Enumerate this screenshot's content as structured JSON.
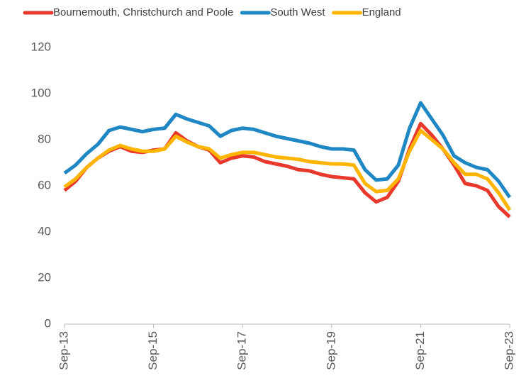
{
  "chart_data": {
    "type": "line",
    "categories": [
      "Sep-13",
      null,
      null,
      null,
      null,
      null,
      null,
      null,
      "Sep-15",
      null,
      null,
      null,
      null,
      null,
      null,
      null,
      "Sep-17",
      null,
      null,
      null,
      null,
      null,
      null,
      null,
      "Sep-19",
      null,
      null,
      null,
      null,
      null,
      null,
      null,
      "Sep-21",
      null,
      null,
      null,
      null,
      null,
      null,
      null,
      "Sep-23"
    ],
    "series": [
      {
        "name": "Bournemouth, Christchurch and Poole",
        "color": "#e8392c",
        "values": [
          58,
          62,
          68,
          72,
          75,
          77,
          75,
          74.5,
          75.5,
          76,
          83,
          79.5,
          77,
          75.5,
          70,
          72,
          73,
          72.5,
          70.5,
          69.5,
          68.5,
          67,
          66.5,
          65,
          64,
          63.5,
          63,
          57,
          53,
          55,
          62,
          76,
          87,
          82,
          76,
          69,
          61,
          60,
          58,
          51,
          46.5
        ]
      },
      {
        "name": "South West",
        "color": "#1f88c4",
        "values": [
          65.5,
          69,
          74,
          78,
          84,
          85.5,
          84.5,
          83.5,
          84.5,
          85,
          91,
          89,
          87.5,
          86,
          81.5,
          84,
          85,
          84.5,
          83,
          81.5,
          80.5,
          79.5,
          78.5,
          77,
          76,
          76,
          75.5,
          67,
          62.5,
          63,
          69,
          85,
          96,
          89,
          82,
          73,
          70,
          68,
          67,
          62,
          55
        ]
      },
      {
        "name": "England",
        "color": "#ffb400",
        "values": [
          59.5,
          63,
          68,
          72,
          75.5,
          77.5,
          76,
          75,
          75,
          76,
          81.5,
          79,
          77,
          76,
          72,
          73.5,
          74.5,
          74.5,
          73.5,
          72.5,
          72,
          71.5,
          70.5,
          70,
          69.5,
          69.5,
          69,
          61,
          57.5,
          58,
          63,
          75,
          84,
          80,
          76,
          70,
          65,
          65,
          63,
          57,
          49.5
        ]
      }
    ],
    "ylim": [
      0,
      120
    ],
    "yticks": [
      0,
      20,
      40,
      60,
      80,
      100,
      120
    ],
    "grid": false,
    "legend": "top"
  }
}
